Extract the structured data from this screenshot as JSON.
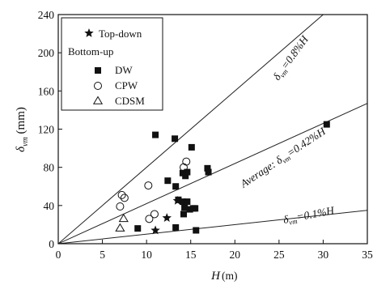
{
  "chart_data": {
    "type": "scatter",
    "xlabel": "H",
    "xlabel_unit": "(m)",
    "ylabel": "δ",
    "ylabel_sub": "vm",
    "ylabel_unit": "(mm)",
    "xlim": [
      0,
      35
    ],
    "ylim": [
      0,
      240
    ],
    "x_ticks": [
      "0",
      "5",
      "10",
      "15",
      "20",
      "25",
      "30",
      "35"
    ],
    "y_ticks": [
      "0",
      "40",
      "80",
      "120",
      "160",
      "200",
      "240"
    ],
    "grid": false,
    "legend": {
      "placement": "top-left",
      "group_title": "Bottom-up",
      "entries": [
        {
          "label": "Top-down",
          "marker": "star"
        },
        {
          "label": "DW",
          "marker": "square-filled"
        },
        {
          "label": "CPW",
          "marker": "circle-open"
        },
        {
          "label": "CDSM",
          "marker": "triangle-open"
        }
      ]
    },
    "series": [
      {
        "name": "Top-down",
        "marker": "star",
        "points": [
          [
            11.0,
            14
          ],
          [
            12.3,
            27
          ],
          [
            13.5,
            45
          ]
        ]
      },
      {
        "name": "DW",
        "marker": "square-filled",
        "points": [
          [
            9.0,
            16
          ],
          [
            11.0,
            114
          ],
          [
            13.2,
            110
          ],
          [
            12.4,
            66
          ],
          [
            13.3,
            60
          ],
          [
            14.1,
            74
          ],
          [
            14.4,
            71
          ],
          [
            14.6,
            75
          ],
          [
            15.1,
            101
          ],
          [
            13.6,
            46
          ],
          [
            14.1,
            44
          ],
          [
            14.3,
            38
          ],
          [
            14.6,
            44
          ],
          [
            14.2,
            31
          ],
          [
            14.9,
            36
          ],
          [
            15.3,
            37
          ],
          [
            15.5,
            37
          ],
          [
            15.6,
            14
          ],
          [
            13.3,
            17
          ],
          [
            16.9,
            79
          ],
          [
            17.0,
            75
          ],
          [
            30.4,
            125
          ]
        ]
      },
      {
        "name": "CPW",
        "marker": "circle-open",
        "points": [
          [
            7.2,
            51
          ],
          [
            7.5,
            48
          ],
          [
            10.2,
            61
          ],
          [
            10.3,
            26
          ],
          [
            10.9,
            31
          ],
          [
            14.5,
            86
          ],
          [
            14.2,
            80
          ],
          [
            7.0,
            39
          ]
        ]
      },
      {
        "name": "CDSM",
        "marker": "triangle-open",
        "points": [
          [
            7.4,
            26
          ],
          [
            7.0,
            16
          ]
        ]
      }
    ],
    "reference_lines": [
      {
        "label_prefix": "δ",
        "label_sub": "vm",
        "label_suffix": "=0.8%H",
        "slope_percent": 0.8
      },
      {
        "label_prefix": "Average: δ",
        "label_sub": "vm",
        "label_suffix": "=0.42%H",
        "slope_percent": 0.42
      },
      {
        "label_prefix": "δ",
        "label_sub": "vm",
        "label_suffix": "=0.1%H",
        "slope_percent": 0.1
      }
    ]
  }
}
